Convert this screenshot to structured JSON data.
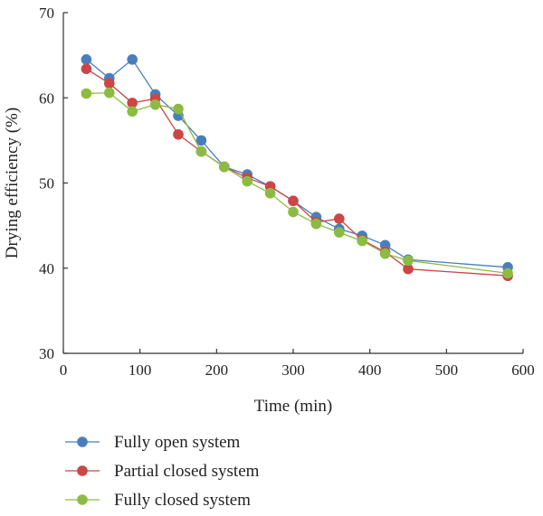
{
  "chart_data": {
    "type": "line",
    "title": "",
    "xlabel": "Time (min)",
    "ylabel": "Drying efficiency (%)",
    "xlim": [
      0,
      600
    ],
    "ylim": [
      30,
      70
    ],
    "xticks": [
      0,
      100,
      200,
      300,
      400,
      500,
      600
    ],
    "yticks": [
      30,
      40,
      50,
      60,
      70
    ],
    "x_tick_labels": [
      "0",
      "100",
      "200",
      "300",
      "400",
      "500",
      "600"
    ],
    "y_tick_labels": [
      "30",
      "40",
      "50",
      "60",
      "70"
    ],
    "grid": false,
    "legend_position": "bottom",
    "x": [
      30,
      60,
      90,
      120,
      150,
      180,
      210,
      240,
      270,
      300,
      330,
      360,
      390,
      420,
      450,
      580
    ],
    "series": [
      {
        "name": "Fully open system",
        "color": "#4a7ebb",
        "values": [
          64.5,
          62.3,
          64.5,
          60.4,
          57.9,
          55.0,
          51.9,
          51.0,
          49.6,
          47.9,
          46.0,
          44.6,
          43.8,
          42.7,
          41.0,
          40.1
        ]
      },
      {
        "name": "Partial closed system",
        "color": "#cc4646",
        "values": [
          63.4,
          61.7,
          59.4,
          59.9,
          55.7,
          53.7,
          51.9,
          50.6,
          49.6,
          47.9,
          45.4,
          45.8,
          43.3,
          41.9,
          39.9,
          39.1
        ]
      },
      {
        "name": "Fully closed system",
        "color": "#8cbb44",
        "values": [
          60.5,
          60.6,
          58.4,
          59.2,
          58.7,
          53.7,
          51.9,
          50.2,
          48.8,
          46.6,
          45.2,
          44.2,
          43.2,
          41.7,
          40.9,
          39.4
        ]
      }
    ]
  }
}
